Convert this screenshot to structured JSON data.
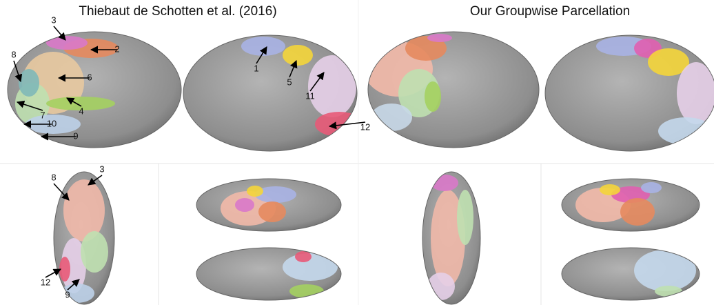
{
  "titles": [
    "Thiebaut de Schotten et al. (2016)",
    "Our Groupwise Parcellation"
  ],
  "labels": [
    "3",
    "2",
    "8",
    "6",
    "7",
    "4",
    "10",
    "9",
    "1",
    "5",
    "11",
    "12",
    "8",
    "3",
    "12",
    "9"
  ]
}
